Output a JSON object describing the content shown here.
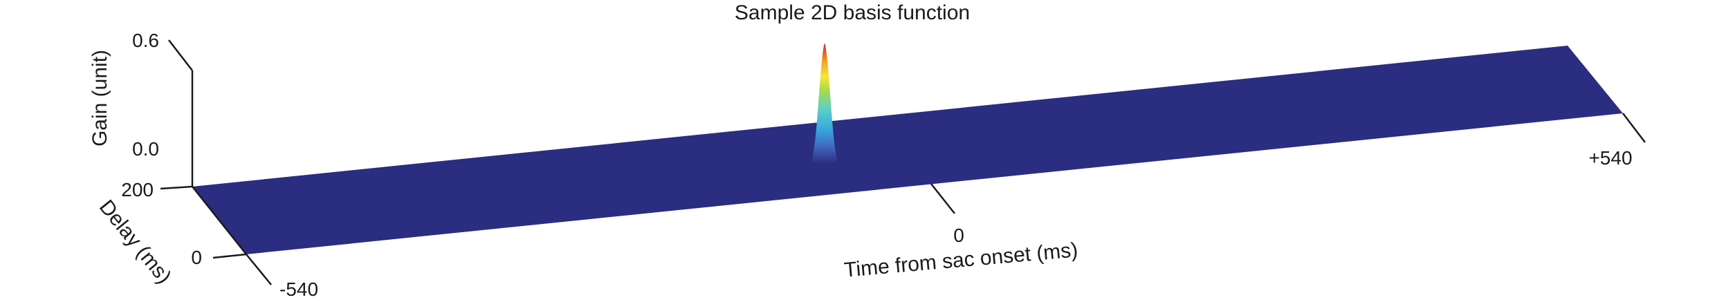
{
  "chart_data": {
    "type": "surface",
    "title": "Sample 2D basis function",
    "xlabel": "Time from sac onset (ms)",
    "ylabel": "Delay (ms)",
    "zlabel": "Gain (unit)",
    "x_ticks": [
      "-540",
      "0",
      "+540"
    ],
    "x_tick_values": [
      -540,
      0,
      540
    ],
    "y_ticks": [
      "0",
      "200"
    ],
    "y_tick_values": [
      0,
      200
    ],
    "z_ticks": [
      "0.0",
      "0.6"
    ],
    "z_tick_values": [
      0.0,
      0.6
    ],
    "xlim": [
      -540,
      540
    ],
    "ylim": [
      0,
      200
    ],
    "zlim": [
      0,
      0.6
    ],
    "peak": {
      "x": 0,
      "y": 200,
      "z": 0.6
    },
    "baseline_value": 0.0,
    "colormap": "jet",
    "colors": {
      "plane": "#2B2D80",
      "axis": "#1A1A1A"
    }
  }
}
